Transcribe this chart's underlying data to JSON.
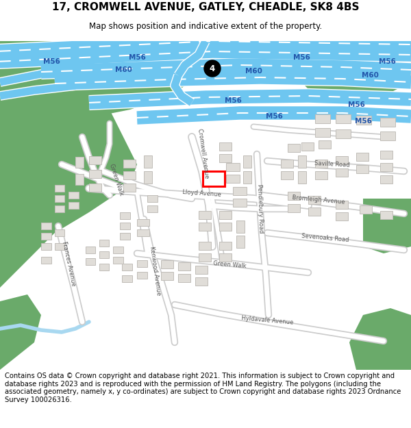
{
  "title_line1": "17, CROMWELL AVENUE, GATLEY, CHEADLE, SK8 4BS",
  "title_line2": "Map shows position and indicative extent of the property.",
  "footer_text": "Contains OS data © Crown copyright and database right 2021. This information is subject to Crown copyright and database rights 2023 and is reproduced with the permission of HM Land Registry. The polygons (including the associated geometry, namely x, y co-ordinates) are subject to Crown copyright and database rights 2023 Ordnance Survey 100026316.",
  "bg_color": "#ffffff",
  "map_bg": "#f5f5f0",
  "road_color": "#6ec6f0",
  "road_white": "#ffffff",
  "green_color": "#6aaa6a",
  "building_color": "#e0ddd8",
  "building_border": "#c0bdb8",
  "highlight_color": "#ff0000",
  "motorway_label_color": "#2255aa",
  "street_label_color": "#555555",
  "water_color": "#a8d8f0"
}
